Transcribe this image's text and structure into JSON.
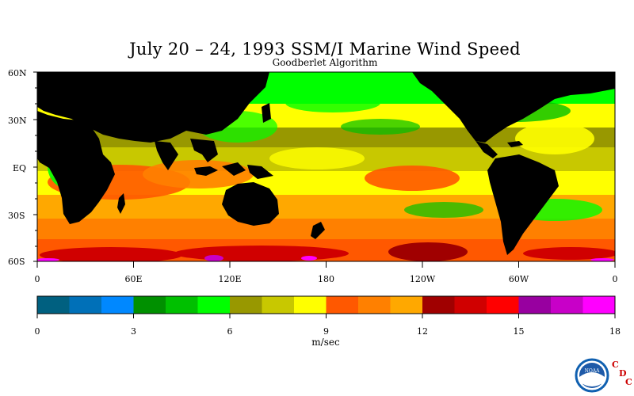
{
  "map": {
    "title": "July 20 – 24, 1993 SSM/I Marine Wind Speed",
    "subtitle": "Goodberlet Algorithm",
    "lat_labels": [
      "60N",
      "30N",
      "EQ",
      "30S",
      "60S"
    ],
    "lon_labels": [
      "0",
      "60E",
      "120E",
      "180",
      "120W",
      "60W",
      "0"
    ],
    "land_color": "#000000",
    "lat_range": [
      -60,
      60
    ],
    "lon_range": [
      0,
      360
    ]
  },
  "colorbar": {
    "colors": [
      "#006080",
      "#0070b8",
      "#0088ff",
      "#009000",
      "#00c000",
      "#00ff00",
      "#989800",
      "#c8c800",
      "#ffff00",
      "#ff5800",
      "#ff8000",
      "#ffa800",
      "#a00000",
      "#d00000",
      "#ff0000",
      "#9800a0",
      "#c800c8",
      "#ff00ff"
    ],
    "tick_labels": [
      "0",
      "3",
      "6",
      "9",
      "12",
      "15",
      "18"
    ],
    "units": "m/sec",
    "range": [
      0,
      18
    ]
  },
  "logo": {
    "noaa_text": "NOAA",
    "cdc_letters": [
      "C",
      "D",
      "C"
    ],
    "cdc_color": "#cc0000"
  }
}
